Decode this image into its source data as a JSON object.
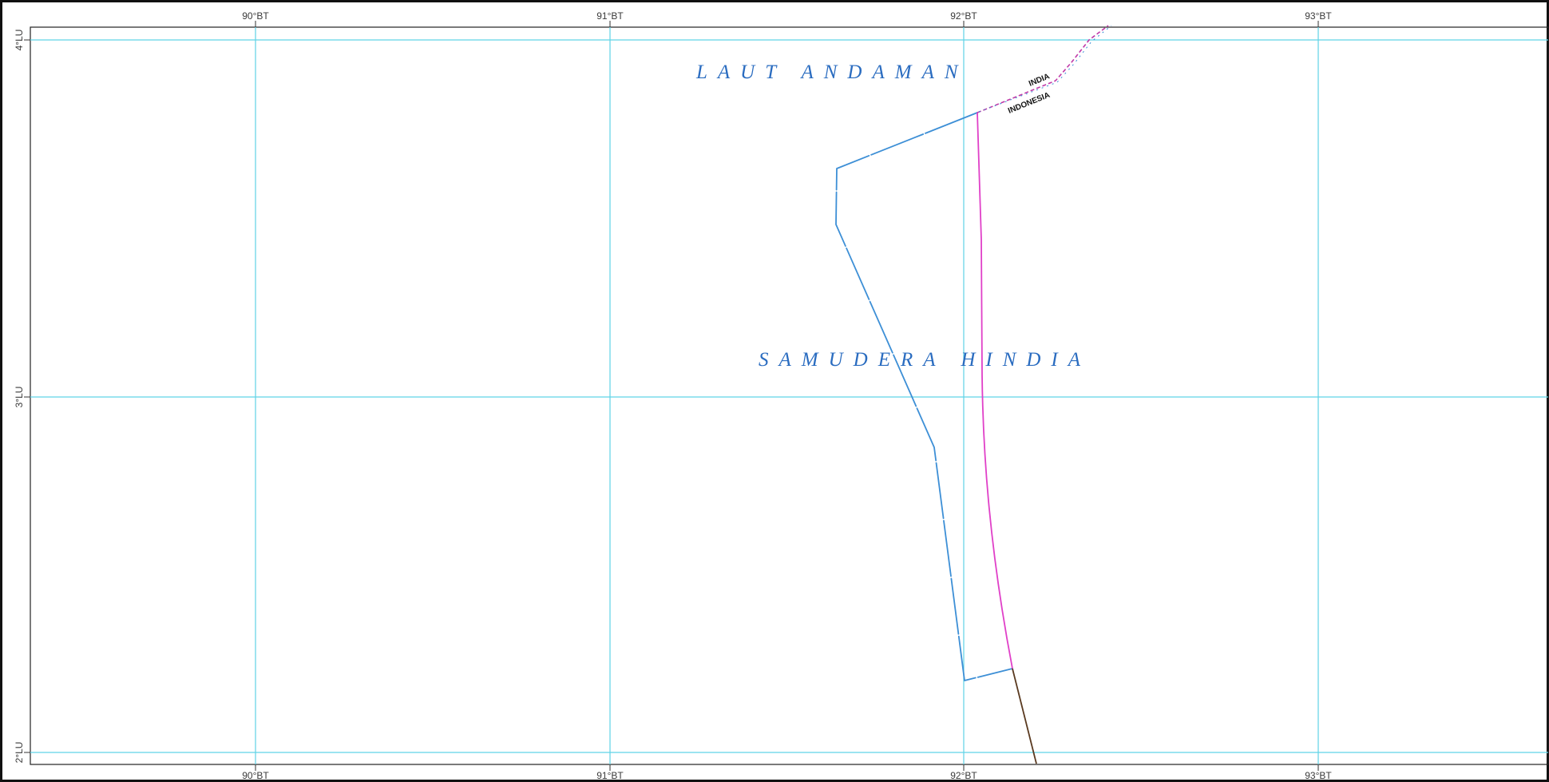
{
  "map": {
    "labels": {
      "sea_andaman": "LAUT ANDAMAN",
      "sea_indian_ocean": "SAMUDERA HINDIA",
      "country_north": "INDIA",
      "country_south": "INDONESIA"
    },
    "longitude_ticks": [
      "90°BT",
      "91°BT",
      "92°BT",
      "93°BT"
    ],
    "latitude_ticks": [
      "4°LU",
      "3°LU",
      "2°LU"
    ],
    "colors": {
      "grid": "#5fd3e6",
      "frame": "#111111",
      "boundary_blue": "#3d8fd6",
      "boundary_magenta": "#e040c8",
      "boundary_brown": "#5a3a20",
      "international_border": "#c03aa8",
      "sea_label": "#2a6cc0"
    }
  }
}
